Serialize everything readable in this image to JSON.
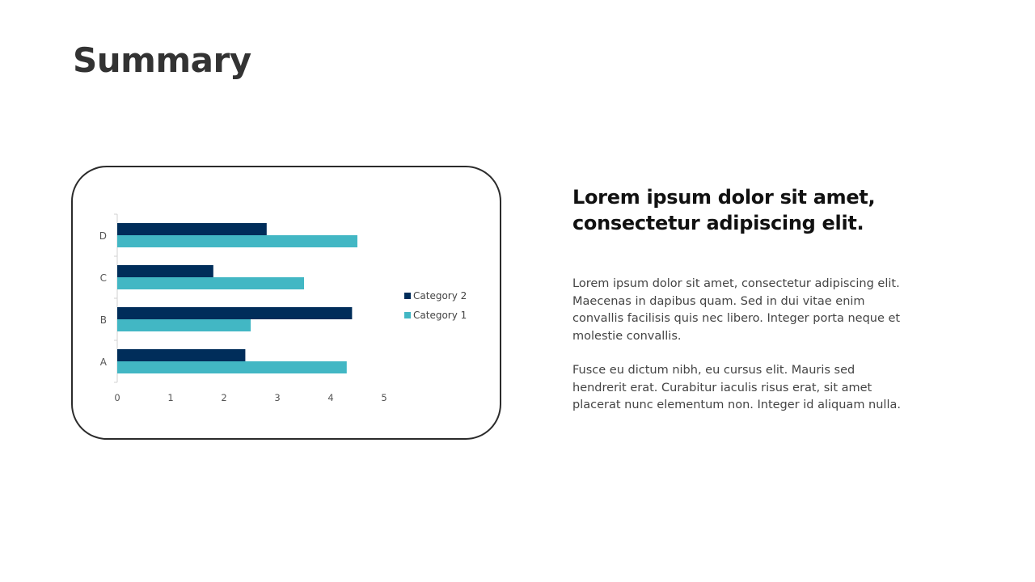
{
  "slide": {
    "title": "Summary",
    "heading": "Lorem ipsum dolor sit amet, consectetur adipiscing elit.",
    "paragraphs": [
      "Lorem ipsum dolor sit amet, consectetur adipiscing elit. Maecenas in dapibus quam. Sed in dui vitae enim convallis facilisis quis nec libero. Integer porta neque et molestie convallis.",
      "Fusce eu dictum nibh, eu cursus elit. Mauris sed hendrerit erat. Curabitur iaculis risus erat, sit amet placerat nunc elementum non. Integer id aliquam nulla."
    ]
  },
  "chart_data": {
    "type": "bar",
    "orientation": "horizontal",
    "categories": [
      "A",
      "B",
      "C",
      "D"
    ],
    "series": [
      {
        "name": "Category 1",
        "values": [
          4.3,
          2.5,
          3.5,
          4.5
        ],
        "color": "#42b7c4"
      },
      {
        "name": "Category 2",
        "values": [
          2.4,
          4.4,
          1.8,
          2.8
        ],
        "color": "#002d5a"
      }
    ],
    "xlim": [
      0,
      5
    ],
    "xticks": [
      "0",
      "1",
      "2",
      "3",
      "4",
      "5"
    ],
    "grid": false,
    "legend": "right"
  }
}
